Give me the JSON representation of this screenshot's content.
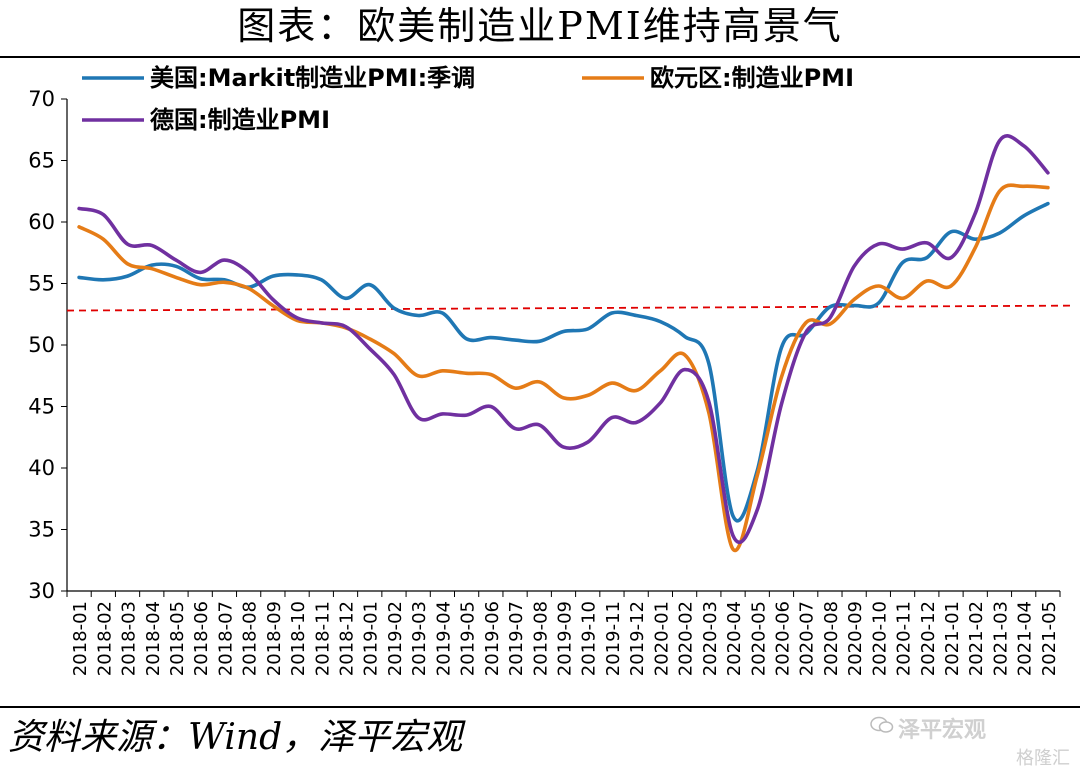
{
  "title": "图表：欧美制造业PMI维持高景气",
  "source": "资料来源：Wind，泽平宏观",
  "watermark": {
    "top": "泽平宏观",
    "bottom": "格隆汇"
  },
  "colors": {
    "us": "#1F77B4",
    "eu": "#E57C17",
    "de": "#7030A0",
    "ref": "#E00000",
    "axis": "#000000"
  },
  "chart_data": {
    "type": "line",
    "ylim": [
      30,
      70
    ],
    "yticks": [
      30,
      35,
      40,
      45,
      50,
      55,
      60,
      65,
      70
    ],
    "grid": false,
    "legend": "top-left",
    "categories": [
      "2018-01",
      "2018-02",
      "2018-03",
      "2018-04",
      "2018-05",
      "2018-06",
      "2018-07",
      "2018-08",
      "2018-09",
      "2018-10",
      "2018-11",
      "2018-12",
      "2019-01",
      "2019-02",
      "2019-03",
      "2019-04",
      "2019-05",
      "2019-06",
      "2019-07",
      "2019-08",
      "2019-09",
      "2019-10",
      "2019-11",
      "2019-12",
      "2020-01",
      "2020-02",
      "2020-03",
      "2020-04",
      "2020-05",
      "2020-06",
      "2020-07",
      "2020-08",
      "2020-09",
      "2020-10",
      "2020-11",
      "2020-12",
      "2021-01",
      "2021-02",
      "2021-03",
      "2021-04",
      "2021-05"
    ],
    "series": [
      {
        "name": "美国:Markit制造业PMI:季调",
        "key": "us",
        "values": [
          55.5,
          55.3,
          55.6,
          56.5,
          56.4,
          55.4,
          55.3,
          54.7,
          55.6,
          55.7,
          55.3,
          53.8,
          54.9,
          53.0,
          52.4,
          52.6,
          50.5,
          50.6,
          50.4,
          50.3,
          51.1,
          51.3,
          52.6,
          52.4,
          51.9,
          50.7,
          48.5,
          36.1,
          39.8,
          49.8,
          50.9,
          53.1,
          53.2,
          53.4,
          56.7,
          57.1,
          59.2,
          58.6,
          59.1,
          60.5,
          61.5
        ]
      },
      {
        "name": "欧元区:制造业PMI",
        "key": "eu",
        "values": [
          59.6,
          58.6,
          56.6,
          56.2,
          55.5,
          54.9,
          55.1,
          54.6,
          53.2,
          52.0,
          51.8,
          51.4,
          50.5,
          49.3,
          47.5,
          47.9,
          47.7,
          47.6,
          46.5,
          47.0,
          45.7,
          45.9,
          46.9,
          46.3,
          47.9,
          49.2,
          44.5,
          33.4,
          39.4,
          47.4,
          51.8,
          51.7,
          53.7,
          54.8,
          53.8,
          55.2,
          54.8,
          57.9,
          62.5,
          62.9,
          62.8
        ]
      },
      {
        "name": "德国:制造业PMI",
        "key": "de",
        "values": [
          61.1,
          60.6,
          58.2,
          58.1,
          56.9,
          55.9,
          56.9,
          55.9,
          53.7,
          52.2,
          51.8,
          51.5,
          49.7,
          47.6,
          44.1,
          44.4,
          44.3,
          45.0,
          43.2,
          43.5,
          41.7,
          42.1,
          44.1,
          43.7,
          45.3,
          48.0,
          45.4,
          34.5,
          36.6,
          45.2,
          51.0,
          52.2,
          56.4,
          58.2,
          57.8,
          58.3,
          57.1,
          60.7,
          66.6,
          66.2,
          64.0
        ]
      }
    ],
    "reference": {
      "from": 52.8,
      "to": 53.2
    }
  }
}
